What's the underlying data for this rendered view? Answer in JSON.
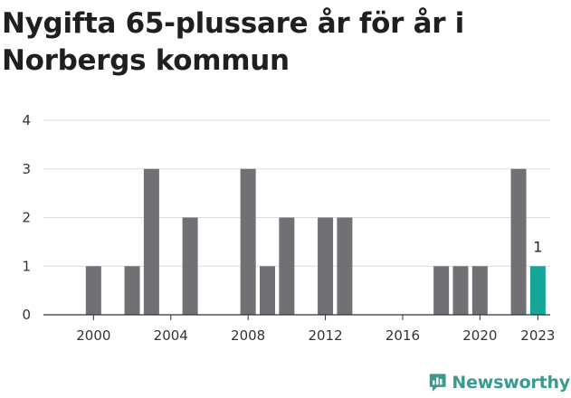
{
  "title": "Nygifta 65-plussare år för år i Norbergs kommun",
  "brand": {
    "name": "Newsworthy",
    "icon": "newsworthy-logo-icon"
  },
  "colors": {
    "bar": "#707075",
    "highlight": "#16a596",
    "grid": "#dddddd",
    "axis": "#333333",
    "brand": "#3a9a8f"
  },
  "chart_data": {
    "type": "bar",
    "title": "Nygifta 65-plussare år för år i Norbergs kommun",
    "xlabel": "",
    "ylabel": "",
    "x": [
      1999,
      2000,
      2001,
      2002,
      2003,
      2004,
      2005,
      2006,
      2007,
      2008,
      2009,
      2010,
      2011,
      2012,
      2013,
      2014,
      2015,
      2016,
      2017,
      2018,
      2019,
      2020,
      2021,
      2022,
      2023
    ],
    "values": [
      0,
      1,
      0,
      1,
      3,
      0,
      2,
      0,
      0,
      3,
      1,
      2,
      0,
      2,
      2,
      0,
      0,
      0,
      0,
      1,
      1,
      1,
      0,
      3,
      1
    ],
    "highlight": 2023,
    "data_labels": [
      {
        "x": 2023,
        "text": "1"
      }
    ],
    "x_ticks": [
      "2000",
      "2004",
      "2008",
      "2012",
      "2016",
      "2020",
      "2023"
    ],
    "y_ticks": [
      "0",
      "1",
      "2",
      "3",
      "4"
    ],
    "ylim": [
      0,
      4
    ],
    "grid": true
  }
}
